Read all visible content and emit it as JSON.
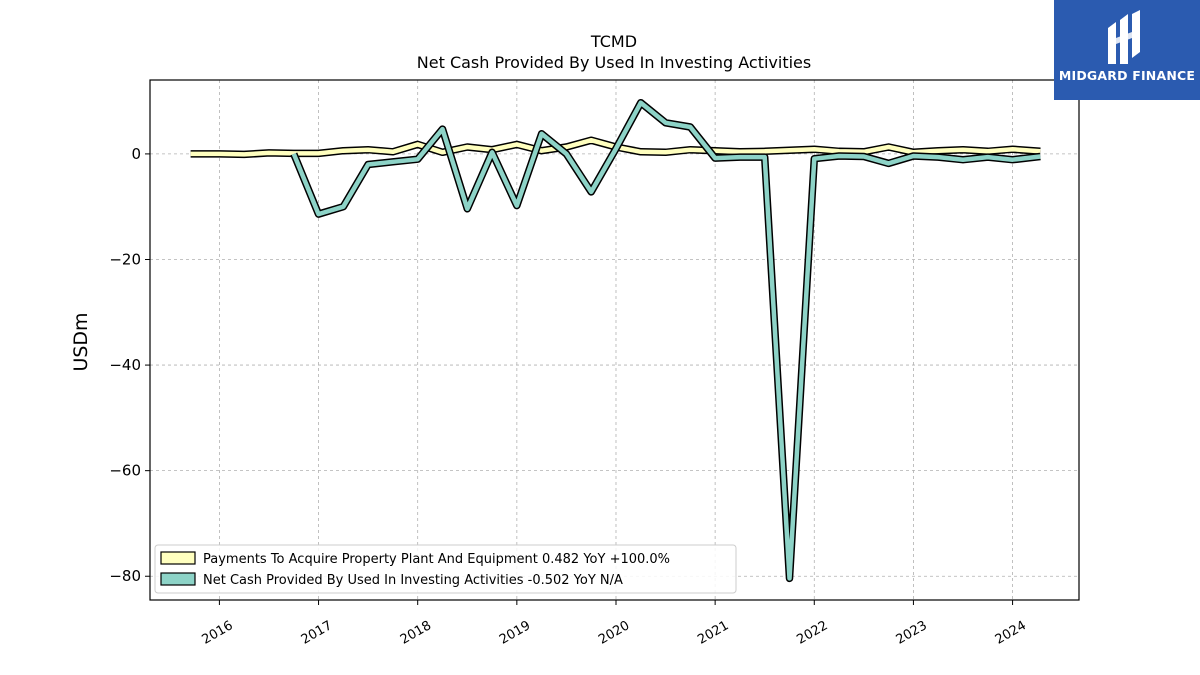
{
  "chart_data": {
    "type": "line",
    "title": "TCMD",
    "subtitle": "Net Cash Provided By Used In Investing Activities",
    "ylabel": "USDm",
    "xlabel": "",
    "ylim": [
      -84.5,
      14
    ],
    "xlim": [
      2015.3,
      2024.67
    ],
    "y_ticks": [
      0,
      -20,
      -40,
      -60,
      -80
    ],
    "x_ticks": [
      2016,
      2017,
      2018,
      2019,
      2020,
      2021,
      2022,
      2023,
      2024
    ],
    "grid": true,
    "legend_position": "lower-left",
    "series": [
      {
        "name": "Payments To Acquire Property Plant And Equipment  0.482 YoY +100.0%",
        "color": "#ffffbf",
        "points": [
          [
            2015.71,
            0.0
          ],
          [
            2016.0,
            0.0
          ],
          [
            2016.25,
            -0.1
          ],
          [
            2016.5,
            0.2
          ],
          [
            2016.75,
            0.1
          ],
          [
            2017.0,
            0.1
          ],
          [
            2017.25,
            0.6
          ],
          [
            2017.5,
            0.8
          ],
          [
            2017.75,
            0.4
          ],
          [
            2018.0,
            1.8
          ],
          [
            2018.25,
            0.3
          ],
          [
            2018.5,
            1.3
          ],
          [
            2018.75,
            0.8
          ],
          [
            2019.0,
            1.8
          ],
          [
            2019.25,
            0.6
          ],
          [
            2019.5,
            1.3
          ],
          [
            2019.75,
            2.6
          ],
          [
            2020.0,
            1.3
          ],
          [
            2020.25,
            0.4
          ],
          [
            2020.5,
            0.3
          ],
          [
            2020.75,
            0.8
          ],
          [
            2021.0,
            0.6
          ],
          [
            2021.25,
            0.4
          ],
          [
            2021.5,
            0.5
          ],
          [
            2021.75,
            0.7
          ],
          [
            2022.0,
            0.9
          ],
          [
            2022.25,
            0.5
          ],
          [
            2022.5,
            0.4
          ],
          [
            2022.75,
            1.3
          ],
          [
            2023.0,
            0.3
          ],
          [
            2023.25,
            0.6
          ],
          [
            2023.5,
            0.8
          ],
          [
            2023.75,
            0.5
          ],
          [
            2024.0,
            0.9
          ],
          [
            2024.28,
            0.5
          ]
        ]
      },
      {
        "name": "Net Cash Provided By Used In Investing Activities  -0.502 YoY N/A",
        "color": "#8dd3c7",
        "points": [
          [
            2016.75,
            0.0
          ],
          [
            2017.0,
            -11.4
          ],
          [
            2017.25,
            -10.0
          ],
          [
            2017.5,
            -2.0
          ],
          [
            2017.75,
            -1.5
          ],
          [
            2018.0,
            -1.0
          ],
          [
            2018.25,
            4.7
          ],
          [
            2018.5,
            -10.4
          ],
          [
            2018.75,
            0.3
          ],
          [
            2019.0,
            -9.8
          ],
          [
            2019.25,
            3.8
          ],
          [
            2019.5,
            0.0
          ],
          [
            2019.75,
            -7.2
          ],
          [
            2020.0,
            1.0
          ],
          [
            2020.25,
            9.7
          ],
          [
            2020.5,
            5.9
          ],
          [
            2020.75,
            5.1
          ],
          [
            2021.0,
            -0.8
          ],
          [
            2021.25,
            -0.6
          ],
          [
            2021.5,
            -0.6
          ],
          [
            2021.75,
            -80.4
          ],
          [
            2022.0,
            -0.9
          ],
          [
            2022.25,
            -0.4
          ],
          [
            2022.5,
            -0.5
          ],
          [
            2022.75,
            -1.8
          ],
          [
            2023.0,
            -0.4
          ],
          [
            2023.25,
            -0.6
          ],
          [
            2023.5,
            -1.1
          ],
          [
            2023.75,
            -0.6
          ],
          [
            2024.0,
            -1.1
          ],
          [
            2024.28,
            -0.5
          ]
        ]
      }
    ]
  },
  "logo": {
    "text": "MIDGARD FINANCE",
    "color": "#2b5bb0"
  }
}
